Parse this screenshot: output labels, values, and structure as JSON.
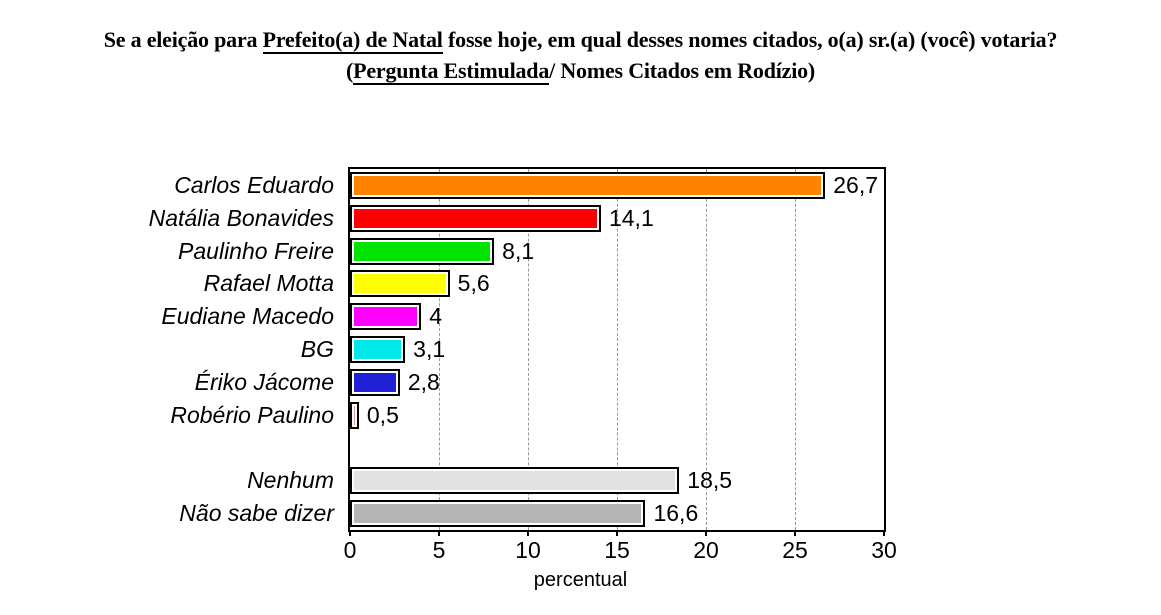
{
  "title": {
    "line1": {
      "pre": "Se a eleição para ",
      "underline": "Prefeito(a) de Natal",
      "post": " fosse hoje, em qual desses nomes citados, o(a) sr.(a) (você) votaria?"
    },
    "line2": {
      "pre": "(",
      "underline": "Pergunta Estimulada",
      "post": "/ Nomes Citados em Rodízio)"
    }
  },
  "chart_data": {
    "type": "bar",
    "orientation": "horizontal",
    "xlabel": "percentual",
    "xlim": [
      0,
      30
    ],
    "xticks": [
      0,
      5,
      10,
      15,
      20,
      25,
      30
    ],
    "grid": "vertical-dashed",
    "gridlines_at": [
      5,
      10,
      15,
      20,
      25
    ],
    "group_break_after_index": 7,
    "bars": [
      {
        "category": "Carlos Eduardo",
        "value": 26.7,
        "label": "26,7",
        "color": "#FF8200"
      },
      {
        "category": "Natália Bonavides",
        "value": 14.1,
        "label": "14,1",
        "color": "#FF0000"
      },
      {
        "category": "Paulinho Freire",
        "value": 8.1,
        "label": "8,1",
        "color": "#00E400"
      },
      {
        "category": "Rafael Motta",
        "value": 5.6,
        "label": "5,6",
        "color": "#FFFF00"
      },
      {
        "category": "Eudiane Macedo",
        "value": 4,
        "label": "4",
        "color": "#FF00FF"
      },
      {
        "category": "BG",
        "value": 3.1,
        "label": "3,1",
        "color": "#00E8E8"
      },
      {
        "category": "Ériko Jácome",
        "value": 2.8,
        "label": "2,8",
        "color": "#2020D6"
      },
      {
        "category": "Robério Paulino",
        "value": 0.5,
        "label": "0,5",
        "color": "#F59090"
      },
      {
        "category": "Nenhum",
        "value": 18.5,
        "label": "18,5",
        "color": "#E2E2E2"
      },
      {
        "category": "Não sabe dizer",
        "value": 16.6,
        "label": "16,6",
        "color": "#B5B5B5"
      }
    ]
  },
  "colors": {
    "background": "#FFFFFF",
    "plot_border": "#000000",
    "gridline": "#999999",
    "text": "#000000"
  }
}
